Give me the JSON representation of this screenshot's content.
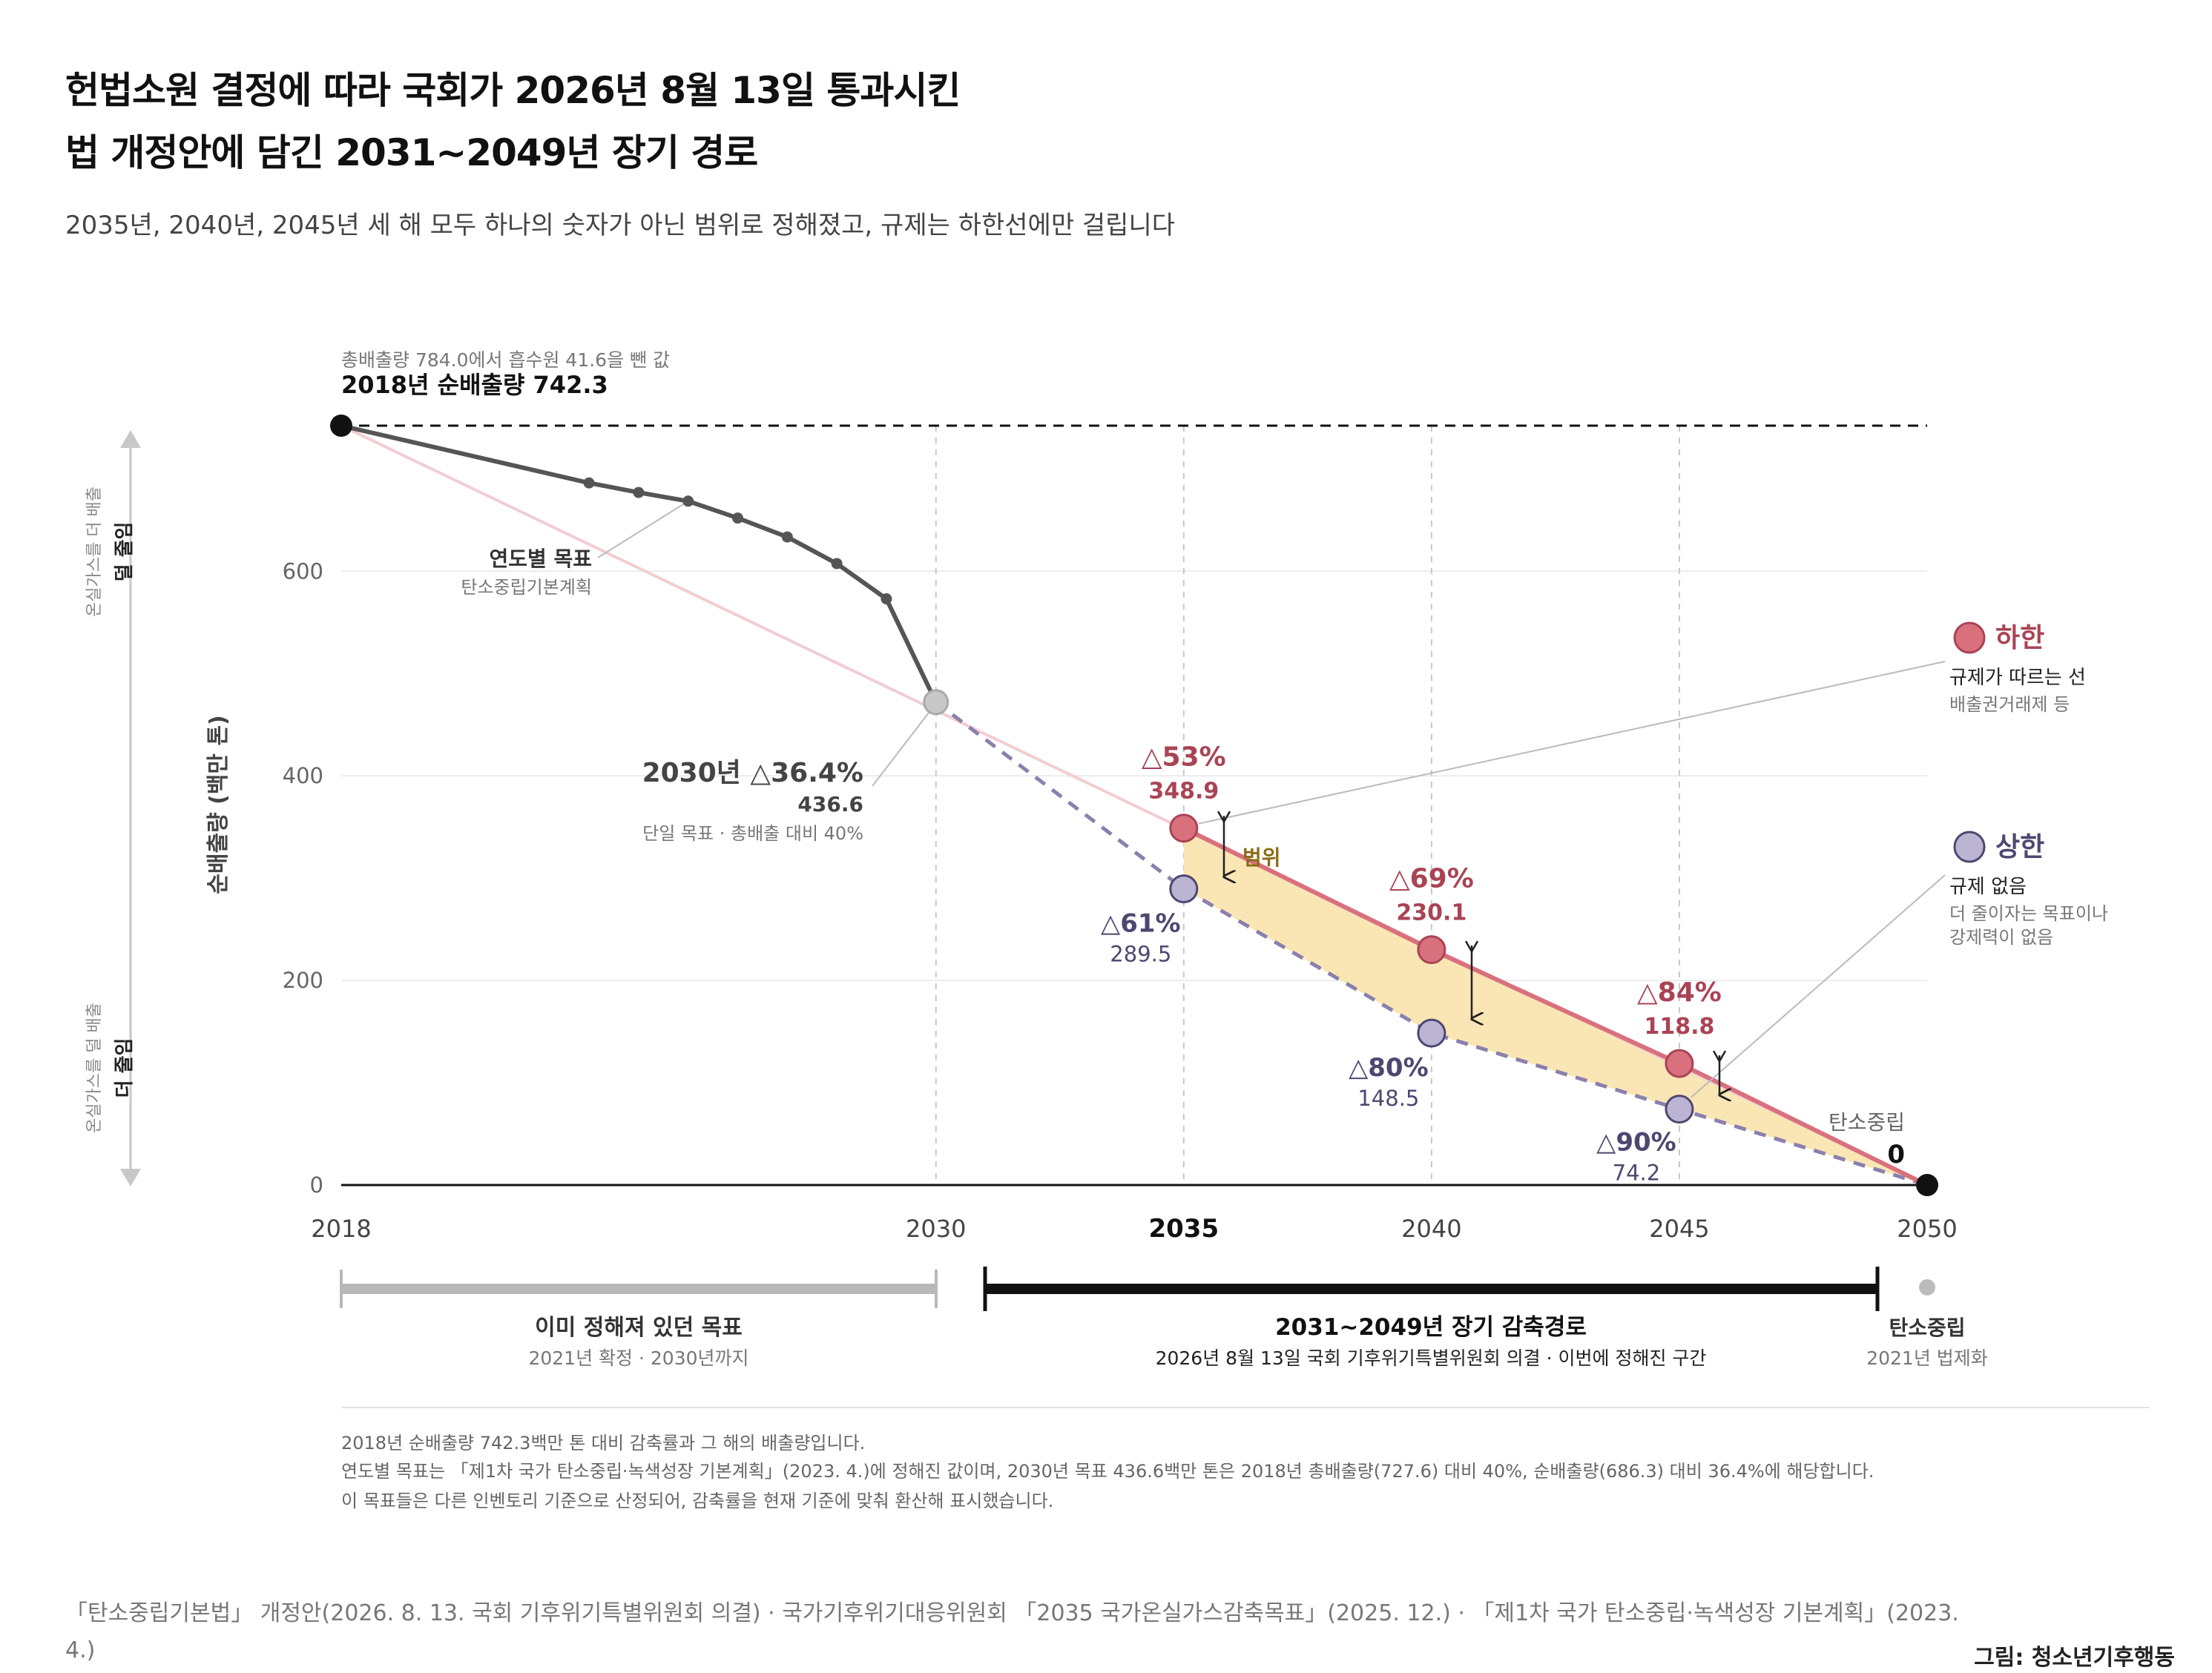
{
  "header": {
    "title_line1": "헌법소원 결정에 따라 국회가 2026년 8월 13일 통과시킨",
    "title_line2": "법 개정안에 담긴 2031~2049년 장기 경로",
    "subtitle": "2035년, 2040년, 2045년 세 해 모두 하나의 숫자가 아닌 범위로 정해졌고, 규제는 하한선에만 걸립니다"
  },
  "chart_data": {
    "type": "line",
    "ylabel": "순배출량 (백만 톤)",
    "ylim": [
      0,
      742.3
    ],
    "y_ticks": [
      0,
      200,
      400,
      600
    ],
    "x_range": [
      2018,
      2050
    ],
    "x_ticks": [
      "2018",
      "2030",
      "2035",
      "2040",
      "2045",
      "2050"
    ],
    "x_tick_emphasis": "2035",
    "y_direction_top": {
      "line1": "온실가스를 더 배출",
      "line2": "덜 줄임"
    },
    "y_direction_bottom": {
      "line1": "온실가스를 덜 배출",
      "line2": "더 줄임"
    },
    "baseline": {
      "year": 2018,
      "value": 742.3,
      "note": "총배출량 784.0에서 흡수원 41.6을 뺀 값",
      "label": "2018년 순배출량 742.3"
    },
    "annual_targets": {
      "label": "연도별 목표",
      "sublabel": "탄소중립기본계획",
      "points": [
        {
          "x": 2018,
          "y": 742.3
        },
        {
          "x": 2023,
          "y": 686.3
        },
        {
          "x": 2024,
          "y": 677.0
        },
        {
          "x": 2025,
          "y": 668.5
        },
        {
          "x": 2026,
          "y": 652.0
        },
        {
          "x": 2027,
          "y": 633.5
        },
        {
          "x": 2028,
          "y": 607.5
        },
        {
          "x": 2029,
          "y": 573.0
        },
        {
          "x": 2030,
          "y": 472.0
        }
      ]
    },
    "target_2030": {
      "year": 2030,
      "label": "2030년 △36.4%",
      "value_label": "436.6",
      "note": "단일 목표 · 총배출 대비 40%"
    },
    "lower_bound": {
      "name": "하한",
      "desc1": "규제가 따르는 선",
      "desc2": "배출권거래제 등",
      "color": "#d9707e",
      "points": [
        {
          "x": 2035,
          "y": 348.9,
          "pct": "△53%",
          "value": "348.9"
        },
        {
          "x": 2040,
          "y": 230.1,
          "pct": "△69%",
          "value": "230.1"
        },
        {
          "x": 2045,
          "y": 118.8,
          "pct": "△84%",
          "value": "118.8"
        },
        {
          "x": 2050,
          "y": 0
        }
      ]
    },
    "upper_bound": {
      "name": "상한",
      "desc1": "규제 없음",
      "desc2": "더 줄이자는 목표이나",
      "desc3": "강제력이 없음",
      "color": "#8a7fae",
      "points": [
        {
          "x": 2035,
          "y": 289.5,
          "pct": "△61%",
          "value": "289.5"
        },
        {
          "x": 2040,
          "y": 148.5,
          "pct": "△80%",
          "value": "148.5"
        },
        {
          "x": 2045,
          "y": 74.2,
          "pct": "△90%",
          "value": "74.2"
        },
        {
          "x": 2050,
          "y": 0
        }
      ]
    },
    "range_label": "범위",
    "net_zero": {
      "year": 2050,
      "label": "탄소중립",
      "value": "0"
    },
    "periods": [
      {
        "from": 2018,
        "to": 2030,
        "label": "이미 정해져 있던 목표",
        "sublabel": "2021년 확정 · 2030년까지",
        "color": "#b8b8b8"
      },
      {
        "from": 2031,
        "to": 2049,
        "label": "2031~2049년 장기 감축경로",
        "sublabel": "2026년 8월 13일 국회 기후위기특별위원회 의결 · 이번에 정해진 구간",
        "color": "#111111"
      },
      {
        "from": 2050,
        "to": 2050,
        "label": "탄소중립",
        "sublabel": "2021년 법제화",
        "color": "#bbbbbb"
      }
    ]
  },
  "footnotes": [
    "2018년 순배출량 742.3백만 톤 대비 감축률과 그 해의 배출량입니다.",
    "연도별 목표는 「제1차 국가 탄소중립·녹색성장 기본계획」(2023. 4.)에 정해진 값이며, 2030년 목표 436.6백만 톤은 2018년 총배출량(727.6) 대비 40%, 순배출량(686.3) 대비 36.4%에 해당합니다.",
    "이 목표들은 다른 인벤토리 기준으로 산정되어, 감축률을 현재 기준에 맞춰 환산해 표시했습니다."
  ],
  "source_line1": "「탄소중립기본법」 개정안(2026. 8. 13. 국회 기후위기특별위원회 의결) · 국가기후위기대응위원회 「2035 국가온실가스감축목표」(2025. 12.) · 「제1차 국가 탄소중립·녹색성장 기본계획」(2023.",
  "source_line2": "4.)",
  "credit": "그림: 청소년기후행동"
}
